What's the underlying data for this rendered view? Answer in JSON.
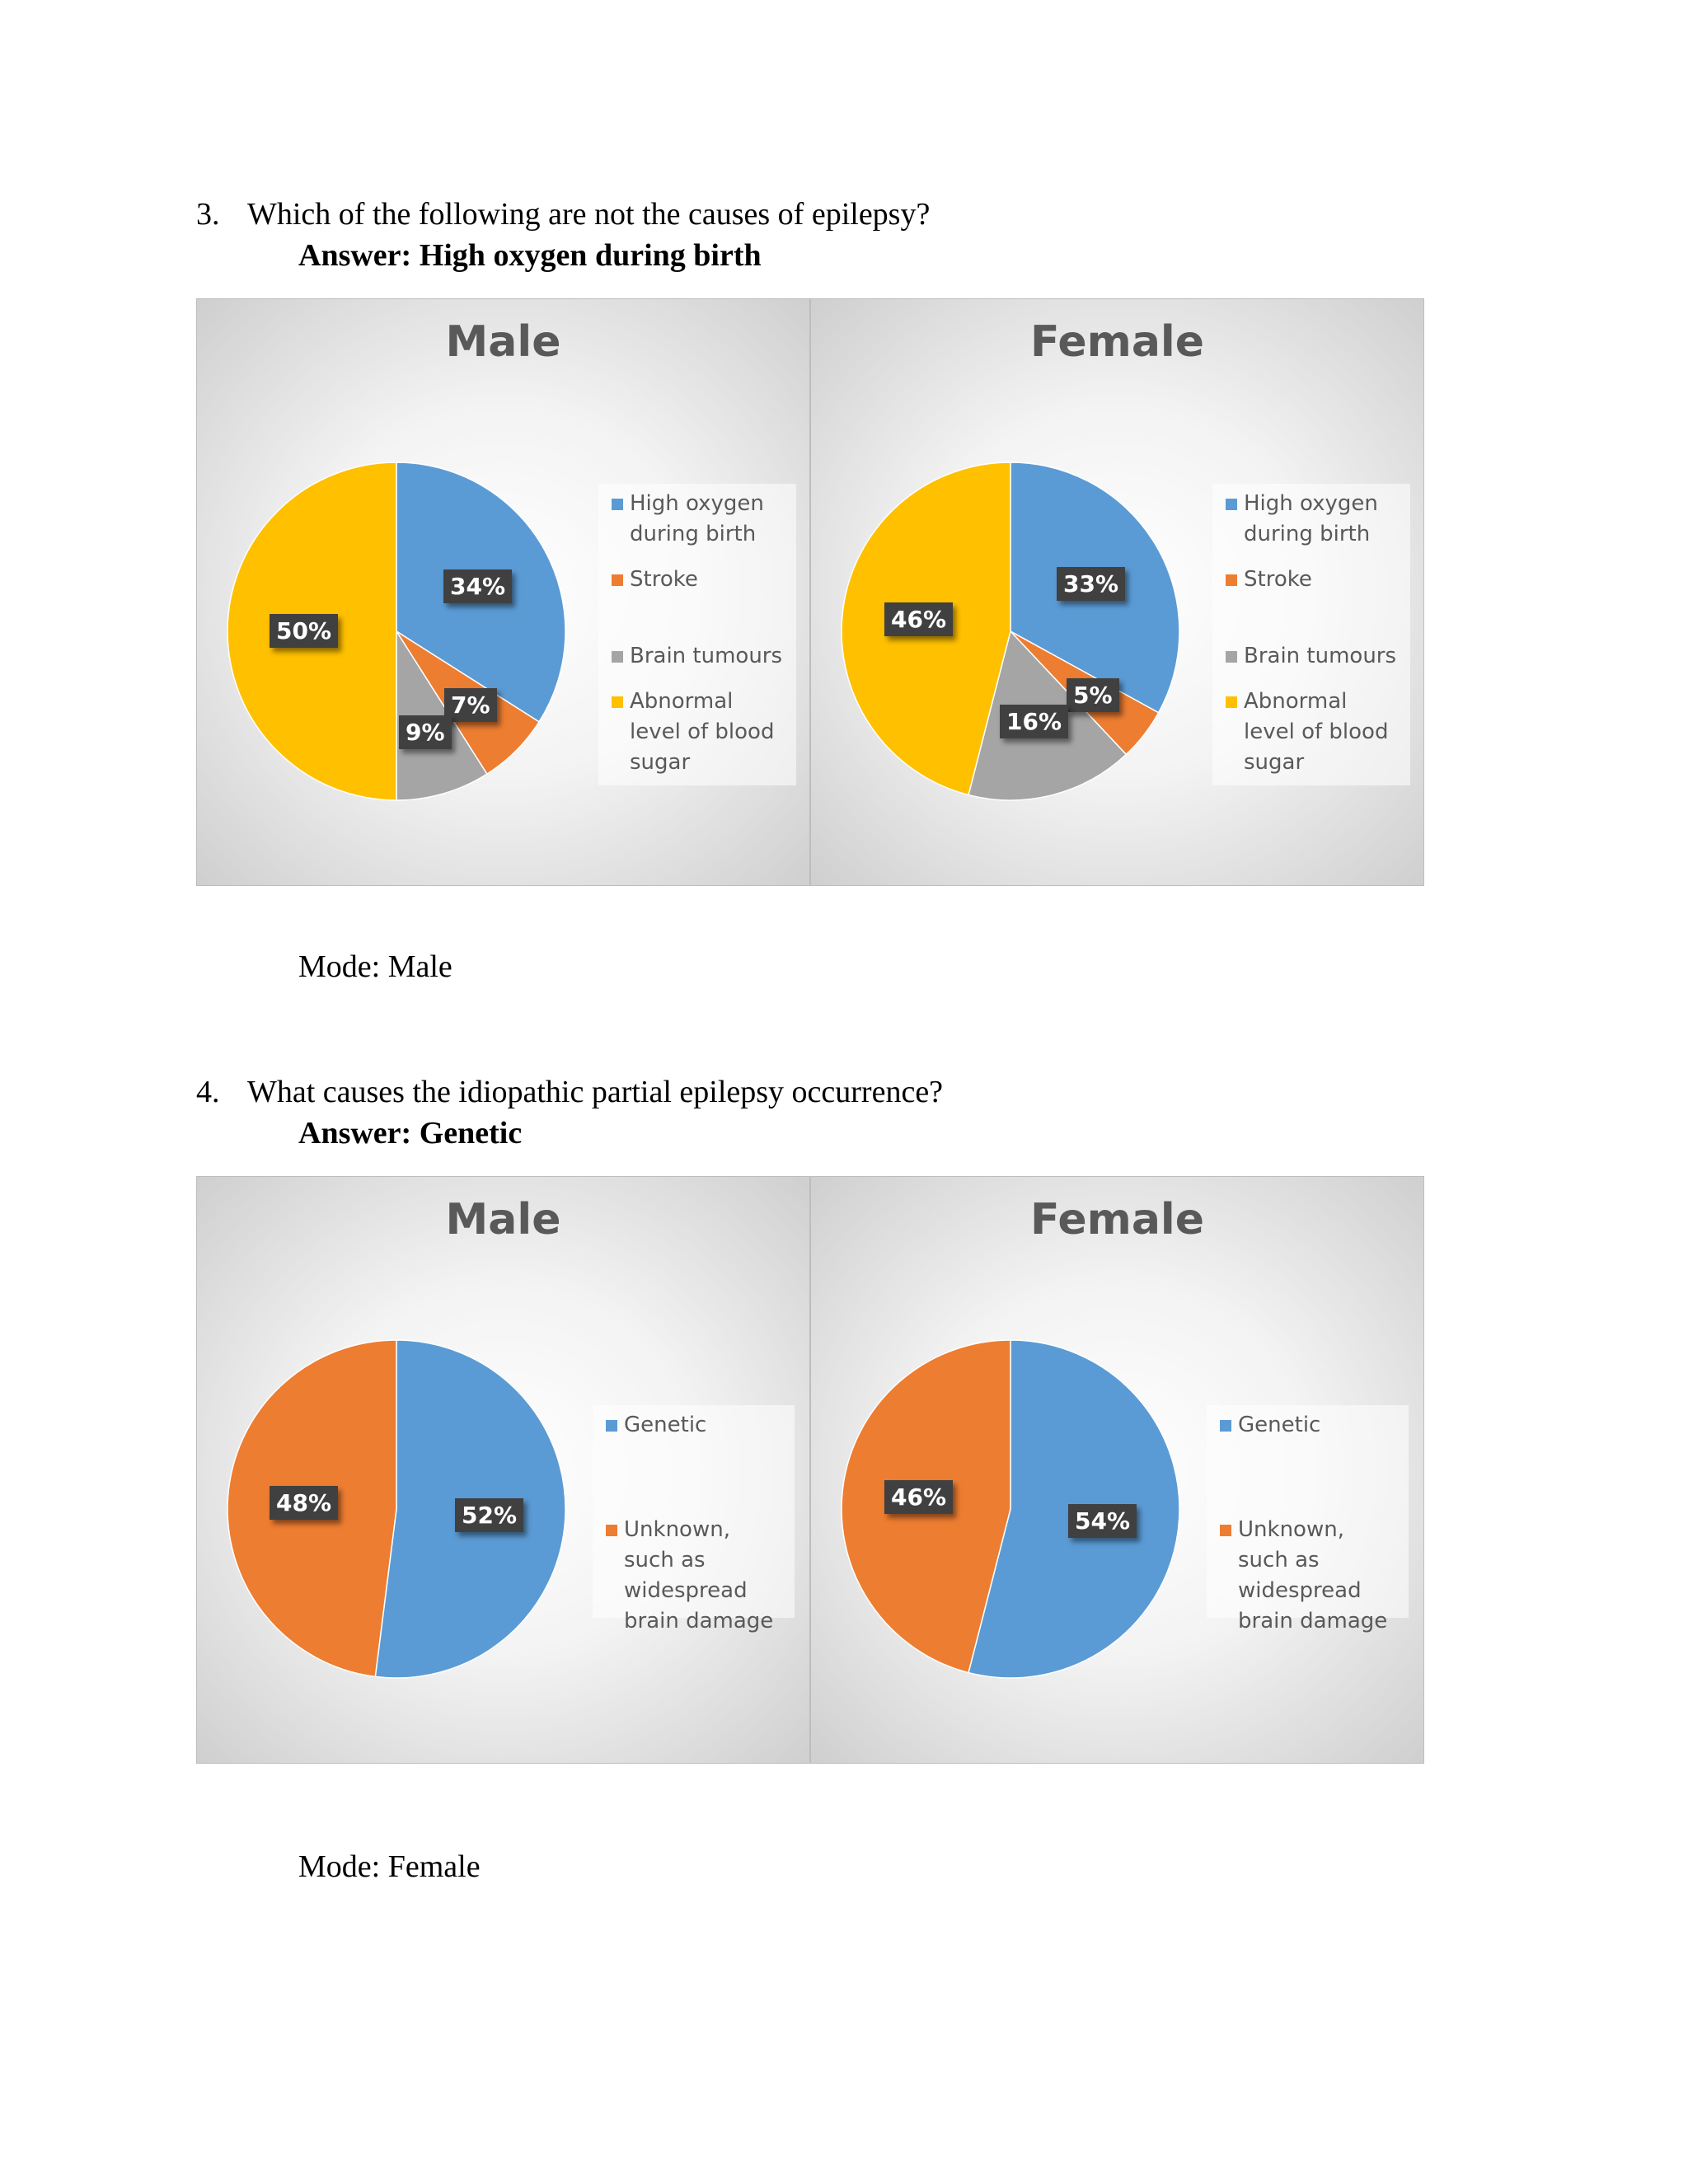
{
  "questions": [
    {
      "number": "3.",
      "text": "Which of the following are not the causes of epilepsy?",
      "answer": "Answer: High oxygen during birth",
      "mode": "Mode: Male"
    },
    {
      "number": "4.",
      "text": "What causes the idiopathic partial epilepsy occurrence?",
      "answer": "Answer: Genetic",
      "mode": "Mode: Female"
    }
  ],
  "chart_data": [
    {
      "type": "pie",
      "title": "Male",
      "categories": [
        "High oxygen during birth",
        "Stroke",
        "Brain tumours",
        "Abnormal level of blood sugar"
      ],
      "values": [
        34,
        7,
        9,
        50
      ],
      "labels": [
        "34%",
        "7%",
        "9%",
        "50%"
      ],
      "colors": [
        "#5b9bd5",
        "#ed7d31",
        "#a5a5a5",
        "#ffc000"
      ],
      "legend_position": "right"
    },
    {
      "type": "pie",
      "title": "Female",
      "categories": [
        "High oxygen during birth",
        "Stroke",
        "Brain tumours",
        "Abnormal level of blood sugar"
      ],
      "values": [
        33,
        5,
        16,
        46
      ],
      "labels": [
        "33%",
        "5%",
        "16%",
        "46%"
      ],
      "colors": [
        "#5b9bd5",
        "#ed7d31",
        "#a5a5a5",
        "#ffc000"
      ],
      "legend_position": "right"
    },
    {
      "type": "pie",
      "title": "Male",
      "categories": [
        "Genetic",
        "Unknown, such as widespread brain damage"
      ],
      "values": [
        52,
        48
      ],
      "labels": [
        "52%",
        "48%"
      ],
      "colors": [
        "#5b9bd5",
        "#ed7d31"
      ],
      "legend_position": "right"
    },
    {
      "type": "pie",
      "title": "Female",
      "categories": [
        "Genetic",
        "Unknown, such as widespread brain damage"
      ],
      "values": [
        54,
        46
      ],
      "labels": [
        "54%",
        "46%"
      ],
      "colors": [
        "#5b9bd5",
        "#ed7d31"
      ],
      "legend_position": "right"
    }
  ]
}
